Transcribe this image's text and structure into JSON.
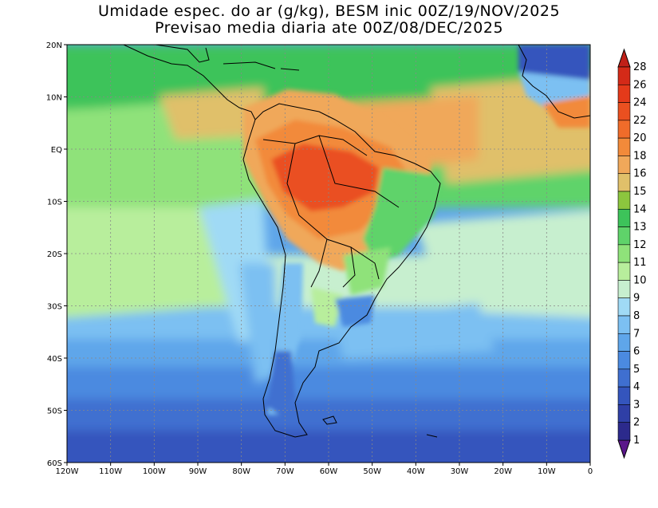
{
  "title": {
    "line1": "Umidade espec. do ar (g/kg), BESM inic 00Z/19/NOV/2025",
    "line2": "Previsao media diaria ate 00Z/08/DEC/2025"
  },
  "map": {
    "lon_range": [
      -120,
      0
    ],
    "lat_range": [
      -60,
      20
    ],
    "lon_labels": [
      {
        "lon": -120,
        "label": "120W"
      },
      {
        "lon": -110,
        "label": "110W"
      },
      {
        "lon": -100,
        "label": "100W"
      },
      {
        "lon": -90,
        "label": "90W"
      },
      {
        "lon": -80,
        "label": "80W"
      },
      {
        "lon": -70,
        "label": "70W"
      },
      {
        "lon": -60,
        "label": "60W"
      },
      {
        "lon": -50,
        "label": "50W"
      },
      {
        "lon": -40,
        "label": "40W"
      },
      {
        "lon": -30,
        "label": "30W"
      },
      {
        "lon": -20,
        "label": "20W"
      },
      {
        "lon": -10,
        "label": "10W"
      },
      {
        "lon": 0,
        "label": "0"
      }
    ],
    "lat_labels": [
      {
        "lat": 20,
        "label": "20N"
      },
      {
        "lat": 10,
        "label": "10N"
      },
      {
        "lat": 0,
        "label": "EQ"
      },
      {
        "lat": -10,
        "label": "10S"
      },
      {
        "lat": -20,
        "label": "20S"
      },
      {
        "lat": -30,
        "label": "30S"
      },
      {
        "lat": -40,
        "label": "40S"
      },
      {
        "lat": -50,
        "label": "50S"
      },
      {
        "lat": -60,
        "label": "60S"
      }
    ]
  },
  "colorbar": {
    "levels": [
      "1",
      "2",
      "3",
      "4",
      "5",
      "6",
      "7",
      "8",
      "9",
      "10",
      "11",
      "12",
      "13",
      "14",
      "15",
      "16",
      "18",
      "20",
      "22",
      "24",
      "26",
      "28"
    ],
    "colors": [
      "#5a168a",
      "#2c2a8c",
      "#2f3fa6",
      "#3455bd",
      "#3f6fd0",
      "#4b8ae0",
      "#5fa6ea",
      "#7cc0f2",
      "#a0daf5",
      "#c7efcf",
      "#b8ee9c",
      "#8fe27a",
      "#5fd36a",
      "#3dc35a",
      "#8cc63e",
      "#e0c06a",
      "#f0a85a",
      "#f28a3a",
      "#f06c2a",
      "#ea5020",
      "#e43a1a",
      "#d42a18",
      "#c02018"
    ],
    "arrow_low_color": "#5a168a",
    "arrow_high_color": "#c02018"
  }
}
